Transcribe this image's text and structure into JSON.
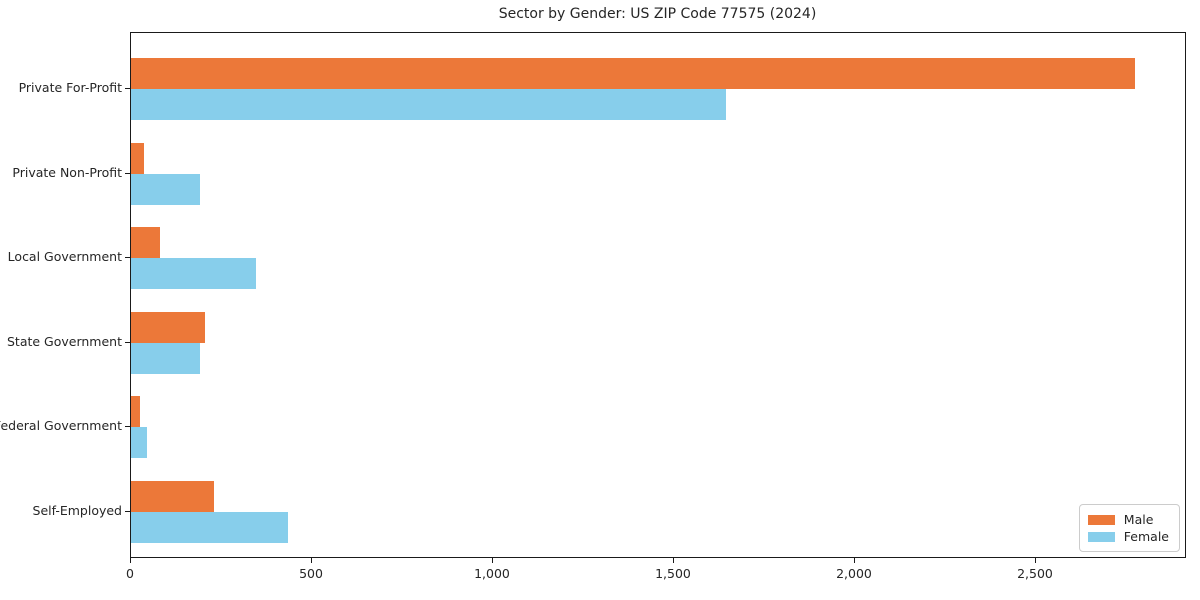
{
  "chart_data": {
    "type": "bar",
    "orientation": "horizontal",
    "title": "Sector by Gender: US ZIP Code 77575 (2024)",
    "categories": [
      "Private For-Profit",
      "Private Non-Profit",
      "Local Government",
      "State Government",
      "Federal Government",
      "Self-Employed"
    ],
    "series": [
      {
        "name": "Male",
        "color": "#EC7839",
        "values": [
          2775,
          35,
          80,
          205,
          25,
          230
        ]
      },
      {
        "name": "Female",
        "color": "#87CEEB",
        "values": [
          1645,
          190,
          345,
          190,
          45,
          435
        ]
      }
    ],
    "xlabel": "",
    "ylabel": "",
    "xlim": [
      0,
      2915
    ],
    "xticks": [
      0,
      500,
      1000,
      1500,
      2000,
      2500
    ],
    "xtick_labels": [
      "0",
      "500",
      "1,000",
      "1,500",
      "2,000",
      "2,500"
    ],
    "grid": false,
    "legend_position": "lower right",
    "axis_color": "#1a1a1a",
    "background_color": "#ffffff"
  }
}
